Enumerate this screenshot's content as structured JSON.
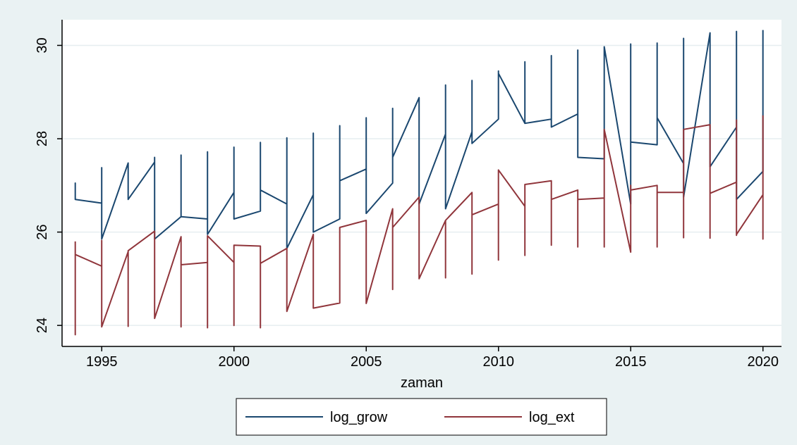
{
  "chart_data": {
    "type": "line",
    "xlabel": "zaman",
    "ylabel": "",
    "xlim": [
      1993.5,
      2020.7
    ],
    "ylim": [
      23.55,
      30.55
    ],
    "x_ticks": [
      1995,
      2000,
      2005,
      2010,
      2015,
      2020
    ],
    "y_ticks": [
      24,
      26,
      28,
      30
    ],
    "grid": true,
    "legend_position": "bottom",
    "series": [
      {
        "name": "log_grow",
        "color": "#1a476f",
        "points": [
          [
            1994,
            26.9
          ],
          [
            1994,
            27.05
          ],
          [
            1994,
            26.7
          ],
          [
            1995,
            26.62
          ],
          [
            1995,
            27.38
          ],
          [
            1995,
            25.85
          ],
          [
            1996,
            27.48
          ],
          [
            1996,
            26.7
          ],
          [
            1997,
            27.5
          ],
          [
            1997,
            27.6
          ],
          [
            1997,
            25.85
          ],
          [
            1998,
            26.33
          ],
          [
            1998,
            27.65
          ],
          [
            1998,
            26.33
          ],
          [
            1999,
            26.28
          ],
          [
            1999,
            27.72
          ],
          [
            1999,
            25.95
          ],
          [
            2000,
            26.85
          ],
          [
            2000,
            27.82
          ],
          [
            2000,
            26.28
          ],
          [
            2001,
            26.45
          ],
          [
            2001,
            27.92
          ],
          [
            2001,
            26.9
          ],
          [
            2002,
            26.6
          ],
          [
            2002,
            28.02
          ],
          [
            2002,
            25.65
          ],
          [
            2003,
            26.8
          ],
          [
            2003,
            28.12
          ],
          [
            2003,
            26.0
          ],
          [
            2004,
            26.28
          ],
          [
            2004,
            28.28
          ],
          [
            2004,
            27.1
          ],
          [
            2005,
            27.35
          ],
          [
            2005,
            28.45
          ],
          [
            2005,
            26.4
          ],
          [
            2006,
            27.05
          ],
          [
            2006,
            28.65
          ],
          [
            2006,
            27.6
          ],
          [
            2007,
            28.88
          ],
          [
            2007,
            26.6
          ],
          [
            2008,
            28.1
          ],
          [
            2008,
            29.15
          ],
          [
            2008,
            26.5
          ],
          [
            2009,
            28.15
          ],
          [
            2009,
            29.25
          ],
          [
            2009,
            27.9
          ],
          [
            2010,
            28.42
          ],
          [
            2010,
            29.45
          ],
          [
            2010,
            29.4
          ],
          [
            2011,
            28.33
          ],
          [
            2011,
            29.65
          ],
          [
            2011,
            28.33
          ],
          [
            2012,
            28.42
          ],
          [
            2012,
            29.78
          ],
          [
            2012,
            28.25
          ],
          [
            2013,
            28.53
          ],
          [
            2013,
            29.9
          ],
          [
            2013,
            27.6
          ],
          [
            2014,
            27.57
          ],
          [
            2014,
            29.97
          ],
          [
            2014,
            29.97
          ],
          [
            2015,
            26.6
          ],
          [
            2015,
            30.03
          ],
          [
            2015,
            27.93
          ],
          [
            2016,
            27.87
          ],
          [
            2016,
            30.05
          ],
          [
            2016,
            28.45
          ],
          [
            2017,
            27.47
          ],
          [
            2017,
            30.15
          ],
          [
            2017,
            26.75
          ],
          [
            2018,
            30.27
          ],
          [
            2018,
            30.27
          ],
          [
            2018,
            27.4
          ],
          [
            2019,
            28.25
          ],
          [
            2019,
            30.3
          ],
          [
            2019,
            26.7
          ],
          [
            2020,
            27.3
          ],
          [
            2020,
            30.33
          ]
        ]
      },
      {
        "name": "log_ext",
        "color": "#90353b",
        "points": [
          [
            1994,
            25.8
          ],
          [
            1994,
            23.8
          ],
          [
            1994,
            25.52
          ],
          [
            1995,
            25.27
          ],
          [
            1995,
            25.82
          ],
          [
            1995,
            23.97
          ],
          [
            1996,
            25.58
          ],
          [
            1996,
            23.98
          ],
          [
            1996,
            25.6
          ],
          [
            1997,
            26.02
          ],
          [
            1997,
            24.15
          ],
          [
            1998,
            25.9
          ],
          [
            1998,
            23.97
          ],
          [
            1998,
            25.3
          ],
          [
            1999,
            25.35
          ],
          [
            1999,
            23.95
          ],
          [
            1999,
            25.92
          ],
          [
            2000,
            25.35
          ],
          [
            2000,
            24.0
          ],
          [
            2000,
            25.72
          ],
          [
            2001,
            25.7
          ],
          [
            2001,
            23.95
          ],
          [
            2001,
            25.33
          ],
          [
            2002,
            25.65
          ],
          [
            2002,
            24.3
          ],
          [
            2002,
            24.3
          ],
          [
            2003,
            25.95
          ],
          [
            2003,
            24.37
          ],
          [
            2004,
            24.48
          ],
          [
            2004,
            25.8
          ],
          [
            2004,
            26.1
          ],
          [
            2005,
            26.25
          ],
          [
            2005,
            24.47
          ],
          [
            2006,
            26.5
          ],
          [
            2006,
            24.77
          ],
          [
            2006,
            26.1
          ],
          [
            2007,
            26.75
          ],
          [
            2007,
            25.0
          ],
          [
            2008,
            26.25
          ],
          [
            2008,
            25.02
          ],
          [
            2008,
            26.25
          ],
          [
            2009,
            26.85
          ],
          [
            2009,
            25.1
          ],
          [
            2009,
            26.37
          ],
          [
            2010,
            26.6
          ],
          [
            2010,
            25.4
          ],
          [
            2010,
            27.33
          ],
          [
            2011,
            26.55
          ],
          [
            2011,
            25.5
          ],
          [
            2011,
            27.02
          ],
          [
            2012,
            27.1
          ],
          [
            2012,
            25.72
          ],
          [
            2012,
            26.7
          ],
          [
            2013,
            26.9
          ],
          [
            2013,
            25.68
          ],
          [
            2013,
            26.7
          ],
          [
            2014,
            26.73
          ],
          [
            2014,
            25.68
          ],
          [
            2014,
            28.2
          ],
          [
            2015,
            25.57
          ],
          [
            2015,
            27.0
          ],
          [
            2015,
            26.9
          ],
          [
            2016,
            27.0
          ],
          [
            2016,
            25.68
          ],
          [
            2016,
            26.85
          ],
          [
            2017,
            26.85
          ],
          [
            2017,
            25.88
          ],
          [
            2017,
            28.2
          ],
          [
            2018,
            28.3
          ],
          [
            2018,
            25.87
          ],
          [
            2018,
            26.83
          ],
          [
            2019,
            27.07
          ],
          [
            2019,
            25.93
          ],
          [
            2019,
            28.4
          ],
          [
            2019,
            25.95
          ],
          [
            2020,
            26.8
          ],
          [
            2020,
            25.85
          ],
          [
            2020,
            28.5
          ]
        ]
      }
    ]
  }
}
